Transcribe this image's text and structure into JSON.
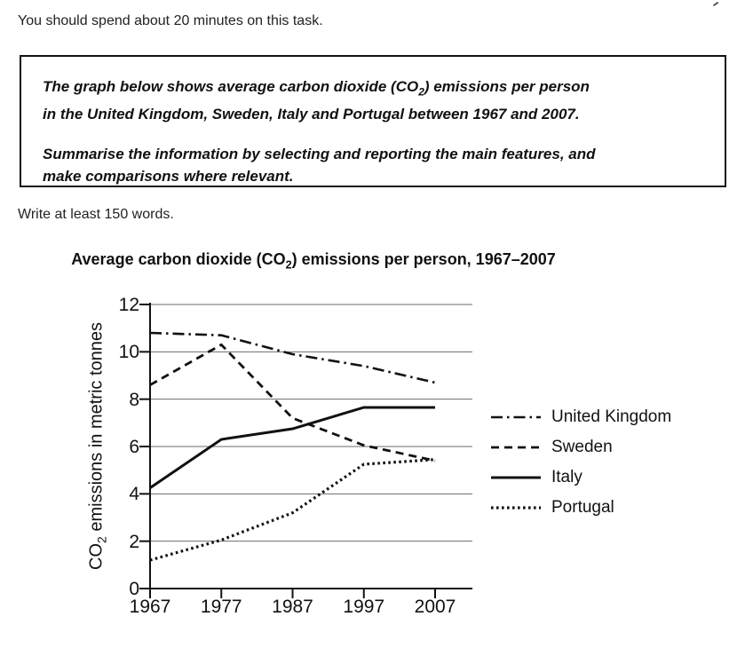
{
  "page": {
    "time_note": "You should spend about 20 minutes on this task.",
    "words_note": "Write at least 150 words."
  },
  "task_box": {
    "p1_line1_pre": "The graph below shows average carbon dioxide (CO",
    "p1_line1_sub": "2",
    "p1_line1_post": ") emissions per person",
    "p1_line2": "in the United Kingdom, Sweden, Italy and Portugal between 1967 and 2007.",
    "p2_line1": "Summarise the information by selecting and reporting the main features, and",
    "p2_line2": "make comparisons where relevant."
  },
  "chart_data": {
    "type": "line",
    "title_pre": "Average carbon dioxide (CO",
    "title_sub": "2",
    "title_post": ") emissions per person, 1967–2007",
    "ylabel_pre": "CO",
    "ylabel_sub": "2",
    "ylabel_post": " emissions in metric tonnes",
    "x": [
      1967,
      1977,
      1987,
      1997,
      2007
    ],
    "ylim": [
      0,
      12
    ],
    "yticks": [
      0,
      2,
      4,
      6,
      8,
      10,
      12
    ],
    "grid": true,
    "legend_position": "right",
    "line_color": "#111111",
    "grid_color": "#6b6b6b",
    "series": [
      {
        "name": "United Kingdom",
        "line_style": "dash-dot",
        "values": [
          10.8,
          10.7,
          9.9,
          9.4,
          8.7
        ]
      },
      {
        "name": "Sweden",
        "line_style": "dashed",
        "values": [
          8.6,
          10.3,
          7.2,
          6.05,
          5.4
        ]
      },
      {
        "name": "Italy",
        "line_style": "solid",
        "values": [
          4.25,
          6.3,
          6.75,
          7.65,
          7.65
        ]
      },
      {
        "name": "Portugal",
        "line_style": "dotted",
        "values": [
          1.2,
          2.05,
          3.2,
          5.25,
          5.45
        ]
      }
    ]
  }
}
